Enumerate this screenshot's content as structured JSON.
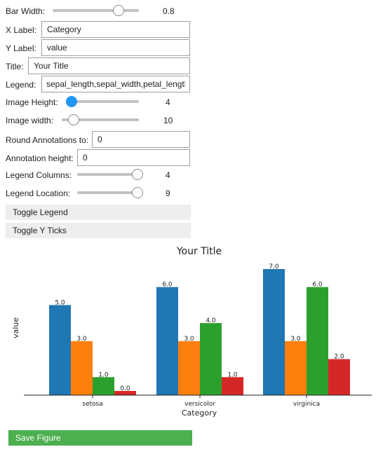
{
  "controls": {
    "bar_width": {
      "label": "Bar Width:",
      "value": "0.8",
      "fraction": 0.8
    },
    "x_label": {
      "label": "X Label:",
      "value": "Category"
    },
    "y_label": {
      "label": "Y Label:",
      "value": "value"
    },
    "title": {
      "label": "Title:",
      "value": "Your Title"
    },
    "legend": {
      "label": "Legend:",
      "value": "sepal_length,sepal_width,petal_length"
    },
    "image_height": {
      "label": "Image Height:",
      "value": "4",
      "fraction": 0.0
    },
    "image_width": {
      "label": "Image width:",
      "value": "10",
      "fraction": 0.1
    },
    "round_annotations": {
      "label": "Round Annotations to:",
      "value": "0"
    },
    "annotation_height": {
      "label": "Annotation height:",
      "value": "0"
    },
    "legend_columns": {
      "label": "Legend Columns:",
      "value": "4",
      "fraction": 1.0
    },
    "legend_location": {
      "label": "Legend Location:",
      "value": "9",
      "fraction": 1.0
    }
  },
  "buttons": {
    "toggle_legend": "Toggle Legend",
    "toggle_y_ticks": "Toggle Y Ticks",
    "save_figure": "Save Figure"
  },
  "chart_data": {
    "type": "bar",
    "title": "Your Title",
    "xlabel": "Category",
    "ylabel": "value",
    "categories": [
      "setosa",
      "versicolor",
      "virginica"
    ],
    "series": [
      {
        "values": [
          5.0,
          6.0,
          7.0
        ],
        "labels": [
          "5.0",
          "6.0",
          "7.0"
        ],
        "color": "#1f77b4"
      },
      {
        "values": [
          3.0,
          3.0,
          3.0
        ],
        "labels": [
          "3.0",
          "3.0",
          "3.0"
        ],
        "color": "#ff7f0e"
      },
      {
        "values": [
          1.0,
          4.0,
          6.0
        ],
        "labels": [
          "1.0",
          "4.0",
          "6.0"
        ],
        "color": "#2ca02c"
      },
      {
        "values": [
          0.0,
          1.0,
          2.0
        ],
        "labels": [
          "0.0",
          "1.0",
          "2.0"
        ],
        "color": "#d62728"
      }
    ],
    "ylim": [
      0,
      7.35
    ],
    "legend": "hidden",
    "y_ticks": "hidden",
    "grid": false
  }
}
